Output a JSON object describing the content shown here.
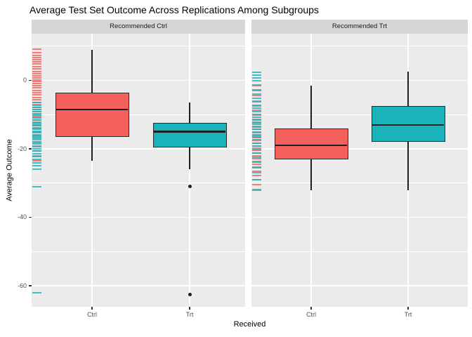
{
  "chart_data": {
    "type": "boxplot",
    "title": "Average Test Set Outcome Across Replications Among Subgroups",
    "xlabel": "Received",
    "ylabel": "Average Outcome",
    "x_categories": [
      "Ctrl",
      "Trt"
    ],
    "y_tick_labels": [
      "0",
      "-20",
      "-40",
      "-60"
    ],
    "y_tick_values": [
      0,
      -20,
      -40,
      -60
    ],
    "y_minor_gridlines": [
      10,
      -10,
      -30,
      -50
    ],
    "ylim": [
      -66,
      13.5
    ],
    "legend_position": "none",
    "grid": "major-and-minor-white-on-gray",
    "colors": {
      "ctrl_fill": "#F4605C",
      "trt_fill": "#19B3B9",
      "panel_background": "#EBEBEB",
      "strip_background": "#D6D6D6",
      "gridline": "#FFFFFF",
      "box_border": "#2B2B2B",
      "median": "#1F1F1F"
    },
    "panels": [
      {
        "strip_label": "Recommended Ctrl",
        "boxes": [
          {
            "category": "Ctrl",
            "group": "ctrl",
            "whisker_low": -23.5,
            "q1": -16.5,
            "median": -8.5,
            "q3": -3.5,
            "whisker_high": 9,
            "outliers": []
          },
          {
            "category": "Trt",
            "group": "trt",
            "whisker_low": -26,
            "q1": -19.5,
            "median": -15,
            "q3": -12.5,
            "whisker_high": -6.5,
            "outliers": [
              -31,
              -62.5
            ]
          }
        ],
        "rug_ctrl": [
          9.2,
          8.1,
          7.3,
          6.6,
          6.0,
          5.4,
          4.8,
          4.1,
          3.3,
          2.6,
          2.0,
          1.4,
          0.8,
          0.2,
          -0.4,
          -1.0,
          -1.6,
          -2.2,
          -2.9,
          -3.6,
          -4.3,
          -5.0,
          -5.7,
          -6.4,
          -7.1,
          -7.8,
          -8.5,
          -9.2,
          -10.0,
          -10.8,
          -11.6,
          -12.4,
          -13.2,
          -14.1,
          -15.0,
          -16.0,
          -17.0,
          -18.1,
          -19.3,
          -20.6,
          -22.0,
          -23.5
        ],
        "rug_trt": [
          -6.5,
          -7.2,
          -7.9,
          -8.6,
          -9.2,
          -9.8,
          -10.4,
          -11.0,
          -11.6,
          -12.2,
          -12.8,
          -13.3,
          -13.8,
          -14.3,
          -14.8,
          -15.3,
          -15.8,
          -16.3,
          -16.8,
          -17.4,
          -18.0,
          -18.6,
          -19.2,
          -19.9,
          -20.6,
          -21.4,
          -22.2,
          -23.0,
          -24.0,
          -25.0,
          -26.0,
          -31.0,
          -62.0
        ]
      },
      {
        "strip_label": "Recommended Trt",
        "boxes": [
          {
            "category": "Ctrl",
            "group": "ctrl",
            "whisker_low": -32,
            "q1": -23,
            "median": -19,
            "q3": -14,
            "whisker_high": -1.5,
            "outliers": []
          },
          {
            "category": "Trt",
            "group": "trt",
            "whisker_low": -32,
            "q1": -18,
            "median": -13,
            "q3": -7.5,
            "whisker_high": 2.5,
            "outliers": []
          }
        ],
        "rug_ctrl": [
          -1.5,
          -3.0,
          -4.5,
          -6.0,
          -7.4,
          -8.8,
          -10.1,
          -11.3,
          -12.4,
          -13.4,
          -14.3,
          -15.2,
          -16.0,
          -16.8,
          -17.6,
          -18.4,
          -19.1,
          -19.8,
          -20.5,
          -21.2,
          -22.0,
          -22.8,
          -23.6,
          -24.5,
          -25.5,
          -26.6,
          -27.8,
          -29.1,
          -30.5,
          -32.0
        ],
        "rug_trt": [
          2.4,
          1.6,
          0.8,
          -0.2,
          -1.4,
          -2.7,
          -4.0,
          -5.2,
          -6.3,
          -7.3,
          -8.2,
          -9.1,
          -9.9,
          -10.7,
          -11.5,
          -12.2,
          -12.9,
          -13.6,
          -14.3,
          -15.0,
          -15.8,
          -16.6,
          -17.4,
          -18.3,
          -19.2,
          -20.2,
          -21.3,
          -22.5,
          -23.8,
          -25.3,
          -27.0,
          -29.0,
          -31.9
        ]
      }
    ]
  }
}
